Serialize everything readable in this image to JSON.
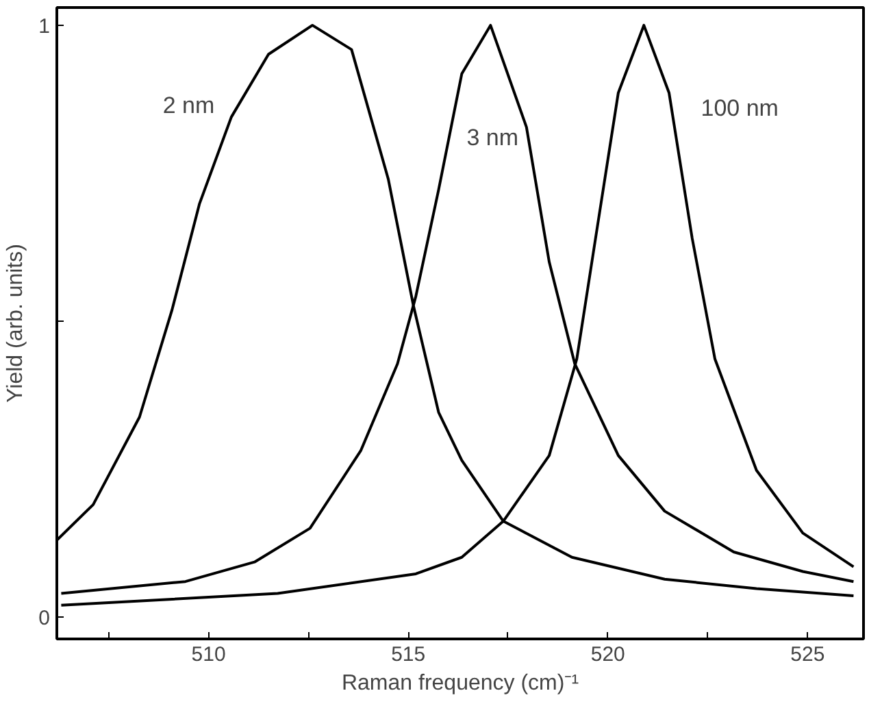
{
  "chart_data": {
    "type": "line",
    "xlabel": "Raman frequency (cm)⁻¹",
    "ylabel": "Yield (arb. units)",
    "xlim": [
      506.2,
      526.4
    ],
    "ylim": [
      -0.037,
      1.03
    ],
    "xticks": [
      {
        "value": 507.5,
        "label": null
      },
      510,
      {
        "value": 512.5,
        "label": null
      },
      515,
      {
        "value": 517.5,
        "label": null
      },
      520,
      {
        "value": 522.5,
        "label": null
      },
      525
    ],
    "yticks": [
      0,
      {
        "value": 0.5,
        "label": null
      },
      1
    ],
    "grid": false,
    "marker": "none",
    "line_style": "solid",
    "series": [
      {
        "name": "2 nm",
        "color": "#000000",
        "x": [
          506.2,
          507.11,
          508.27,
          509.08,
          509.77,
          510.57,
          511.5,
          512.6,
          513.58,
          514.5,
          515.13,
          515.76,
          516.34,
          517.38,
          519.1,
          521.42,
          523.72,
          526.15
        ],
        "values": [
          0.13,
          0.19,
          0.338,
          0.518,
          0.698,
          0.845,
          0.951,
          1.0,
          0.959,
          0.74,
          0.526,
          0.346,
          0.265,
          0.162,
          0.101,
          0.064,
          0.048,
          0.036
        ]
      },
      {
        "name": "3 nm",
        "color": "#000000",
        "x": [
          506.31,
          509.42,
          511.15,
          512.54,
          513.81,
          514.73,
          515.19,
          515.76,
          516.34,
          517.06,
          517.96,
          518.53,
          519.17,
          520.26,
          521.42,
          523.15,
          524.88,
          526.15
        ],
        "values": [
          0.04,
          0.06,
          0.093,
          0.15,
          0.281,
          0.428,
          0.542,
          0.722,
          0.918,
          1.0,
          0.828,
          0.6,
          0.428,
          0.273,
          0.179,
          0.11,
          0.077,
          0.06
        ]
      },
      {
        "name": "100 nm",
        "color": "#000000",
        "x": [
          506.31,
          511.73,
          515.19,
          516.34,
          517.38,
          518.53,
          519.22,
          519.69,
          520.26,
          520.9,
          521.53,
          522.11,
          522.68,
          523.72,
          524.88,
          526.15
        ],
        "values": [
          0.02,
          0.04,
          0.073,
          0.101,
          0.162,
          0.273,
          0.436,
          0.64,
          0.886,
          1.0,
          0.886,
          0.64,
          0.436,
          0.248,
          0.142,
          0.085
        ]
      }
    ]
  }
}
